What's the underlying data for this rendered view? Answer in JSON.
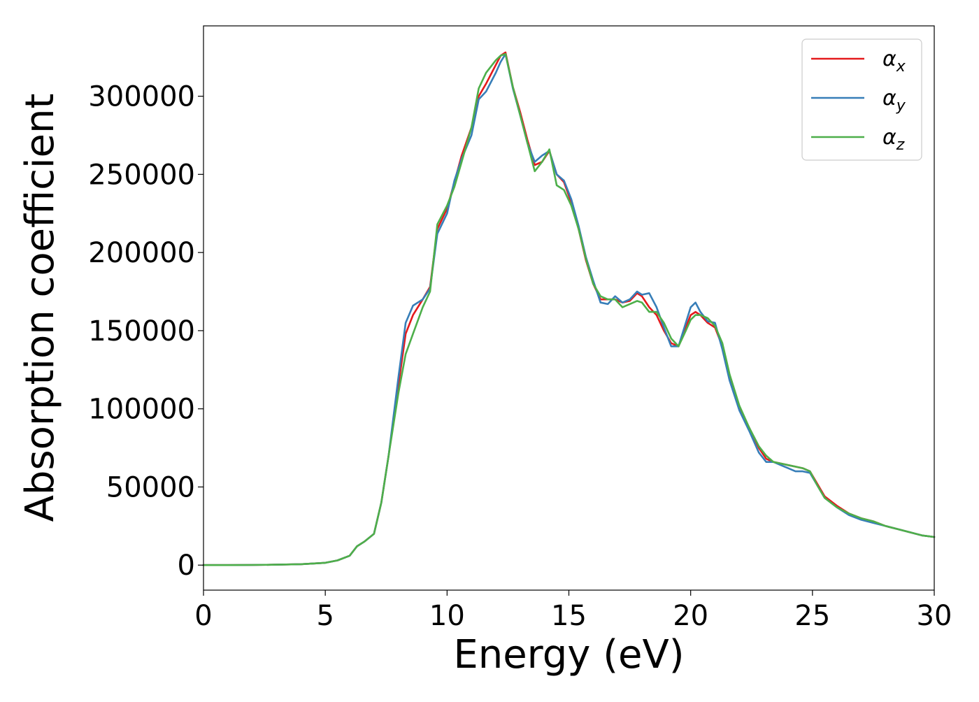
{
  "chart_data": {
    "type": "line",
    "title": "",
    "xlabel": "Energy (eV)",
    "ylabel": "Absorption coefficient",
    "xlim": [
      0,
      30
    ],
    "ylim": [
      -16000,
      345000
    ],
    "xticks": [
      0,
      5,
      10,
      15,
      20,
      25,
      30
    ],
    "yticks": [
      0,
      50000,
      100000,
      150000,
      200000,
      250000,
      300000
    ],
    "grid": false,
    "legend_position": "top-right",
    "series": [
      {
        "name": "αx",
        "symbol": "α",
        "subscript": "x",
        "color": "#e41a1c",
        "x": [
          0,
          1,
          2,
          3,
          4,
          5,
          5.5,
          6,
          6.3,
          6.6,
          7,
          7.3,
          7.6,
          8,
          8.3,
          8.6,
          9,
          9.3,
          9.6,
          10,
          10.3,
          10.6,
          11,
          11.3,
          11.6,
          12,
          12.2,
          12.4,
          12.7,
          13,
          13.3,
          13.6,
          13.9,
          14.2,
          14.5,
          14.8,
          15.1,
          15.4,
          15.7,
          16,
          16.3,
          16.6,
          16.9,
          17.2,
          17.5,
          17.8,
          18,
          18.3,
          18.6,
          18.9,
          19.2,
          19.5,
          19.8,
          20,
          20.2,
          20.4,
          20.7,
          21,
          21.3,
          21.6,
          22,
          22.4,
          22.8,
          23.1,
          23.4,
          23.7,
          24,
          24.3,
          24.6,
          24.9,
          25.2,
          25.5,
          26,
          26.5,
          27,
          27.5,
          28,
          28.5,
          29,
          29.5,
          30
        ],
        "y": [
          0,
          0,
          100,
          300,
          600,
          1500,
          3000,
          6000,
          12000,
          15000,
          20000,
          40000,
          70000,
          115000,
          148000,
          160000,
          170000,
          178000,
          215000,
          228000,
          245000,
          262000,
          280000,
          300000,
          308000,
          320000,
          326000,
          328000,
          306000,
          290000,
          272000,
          256000,
          258000,
          265000,
          250000,
          245000,
          232000,
          215000,
          195000,
          180000,
          170000,
          170000,
          170000,
          168000,
          169000,
          174000,
          172000,
          165000,
          160000,
          150000,
          142000,
          140000,
          152000,
          160000,
          162000,
          160000,
          155000,
          152000,
          140000,
          120000,
          100000,
          88000,
          75000,
          68000,
          66000,
          65000,
          64000,
          63000,
          62000,
          60000,
          52000,
          44000,
          38000,
          33000,
          30000,
          28000,
          25000,
          23000,
          21000,
          19000,
          18000
        ]
      },
      {
        "name": "αy",
        "symbol": "α",
        "subscript": "y",
        "color": "#377eb8",
        "x": [
          0,
          1,
          2,
          3,
          4,
          5,
          5.5,
          6,
          6.3,
          6.6,
          7,
          7.3,
          7.6,
          8,
          8.3,
          8.6,
          9,
          9.3,
          9.6,
          10,
          10.3,
          10.6,
          11,
          11.3,
          11.6,
          12,
          12.2,
          12.4,
          12.7,
          13,
          13.3,
          13.6,
          13.9,
          14.2,
          14.5,
          14.8,
          15.1,
          15.4,
          15.7,
          16,
          16.3,
          16.6,
          16.9,
          17.2,
          17.5,
          17.8,
          18,
          18.3,
          18.6,
          18.9,
          19.2,
          19.5,
          19.8,
          20,
          20.2,
          20.4,
          20.7,
          21,
          21.3,
          21.6,
          22,
          22.4,
          22.8,
          23.1,
          23.4,
          23.7,
          24,
          24.3,
          24.6,
          24.9,
          25.2,
          25.5,
          26,
          26.5,
          27,
          27.5,
          28,
          28.5,
          29,
          29.5,
          30
        ],
        "y": [
          0,
          0,
          100,
          300,
          600,
          1500,
          3000,
          6000,
          12000,
          15000,
          20000,
          40000,
          70000,
          120000,
          155000,
          166000,
          170000,
          177000,
          212000,
          225000,
          246000,
          260000,
          275000,
          298000,
          303000,
          315000,
          322000,
          327000,
          305000,
          288000,
          270000,
          258000,
          262000,
          265000,
          250000,
          246000,
          234000,
          217000,
          197000,
          182000,
          168000,
          167000,
          172000,
          168000,
          170000,
          175000,
          173000,
          174000,
          165000,
          152000,
          140000,
          140000,
          155000,
          165000,
          168000,
          162000,
          156000,
          155000,
          138000,
          118000,
          99000,
          86000,
          72000,
          66000,
          66000,
          64000,
          62000,
          60000,
          60000,
          59000,
          51000,
          43000,
          37000,
          32000,
          29000,
          27000,
          25000,
          23000,
          21000,
          19000,
          18000
        ]
      },
      {
        "name": "αz",
        "symbol": "α",
        "subscript": "z",
        "color": "#4daf4a",
        "x": [
          0,
          1,
          2,
          3,
          4,
          5,
          5.5,
          6,
          6.3,
          6.6,
          7,
          7.3,
          7.6,
          8,
          8.3,
          8.6,
          9,
          9.3,
          9.6,
          10,
          10.3,
          10.6,
          11,
          11.3,
          11.6,
          12,
          12.2,
          12.4,
          12.7,
          13,
          13.3,
          13.6,
          13.9,
          14.2,
          14.5,
          14.8,
          15.1,
          15.4,
          15.7,
          16,
          16.3,
          16.6,
          16.9,
          17.2,
          17.5,
          17.8,
          18,
          18.3,
          18.6,
          18.9,
          19.2,
          19.5,
          19.8,
          20,
          20.2,
          20.4,
          20.7,
          21,
          21.3,
          21.6,
          22,
          22.4,
          22.8,
          23.1,
          23.4,
          23.7,
          24,
          24.3,
          24.6,
          24.9,
          25.2,
          25.5,
          26,
          26.5,
          27,
          27.5,
          28,
          28.5,
          29,
          29.5,
          30
        ],
        "y": [
          0,
          0,
          100,
          300,
          600,
          1500,
          3000,
          6000,
          12000,
          15000,
          20000,
          40000,
          70000,
          110000,
          135000,
          148000,
          165000,
          175000,
          218000,
          230000,
          242000,
          258000,
          280000,
          305000,
          315000,
          323000,
          326000,
          327000,
          306000,
          288000,
          270000,
          252000,
          258000,
          266000,
          243000,
          240000,
          230000,
          215000,
          196000,
          180000,
          172000,
          170000,
          170000,
          165000,
          167000,
          169000,
          168000,
          162000,
          162000,
          155000,
          145000,
          140000,
          150000,
          157000,
          160000,
          160000,
          158000,
          153000,
          142000,
          122000,
          102000,
          88000,
          76000,
          70000,
          66000,
          65000,
          64000,
          63000,
          62000,
          60000,
          51000,
          43000,
          37000,
          33000,
          30000,
          28000,
          25000,
          23000,
          21000,
          19000,
          18000
        ]
      }
    ]
  }
}
